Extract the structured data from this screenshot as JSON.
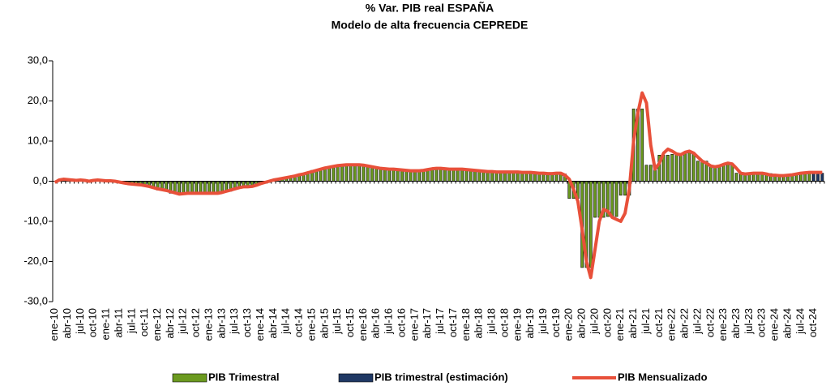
{
  "chart_data": {
    "type": "combo",
    "title": "% Var. PIB real ESPAÑA",
    "subtitle": "Modelo de alta frecuencia CEPREDE",
    "ylim": [
      -30,
      30
    ],
    "yticks": [
      {
        "value": -30,
        "label": "-30,0"
      },
      {
        "value": -20,
        "label": "-20,0"
      },
      {
        "value": -10,
        "label": "-10,0"
      },
      {
        "value": 0,
        "label": "0,0"
      },
      {
        "value": 10,
        "label": "10,0"
      },
      {
        "value": 20,
        "label": "20,0"
      },
      {
        "value": 30,
        "label": "30,0"
      }
    ],
    "categories": [
      "ene-10",
      null,
      null,
      "abr-10",
      null,
      null,
      "jul-10",
      null,
      null,
      "oct-10",
      null,
      null,
      "ene-11",
      null,
      null,
      "abr-11",
      null,
      null,
      "jul-11",
      null,
      null,
      "oct-11",
      null,
      null,
      "ene-12",
      null,
      null,
      "abr-12",
      null,
      null,
      "jul-12",
      null,
      null,
      "oct-12",
      null,
      null,
      "ene-13",
      null,
      null,
      "abr-13",
      null,
      null,
      "jul-13",
      null,
      null,
      "oct-13",
      null,
      null,
      "ene-14",
      null,
      null,
      "abr-14",
      null,
      null,
      "jul-14",
      null,
      null,
      "oct-14",
      null,
      null,
      "ene-15",
      null,
      null,
      "abr-15",
      null,
      null,
      "jul-15",
      null,
      null,
      "oct-15",
      null,
      null,
      "ene-16",
      null,
      null,
      "abr-16",
      null,
      null,
      "jul-16",
      null,
      null,
      "oct-16",
      null,
      null,
      "ene-17",
      null,
      null,
      "abr-17",
      null,
      null,
      "jul-17",
      null,
      null,
      "oct-17",
      null,
      null,
      "ene-18",
      null,
      null,
      "abr-18",
      null,
      null,
      "jul-18",
      null,
      null,
      "oct-18",
      null,
      null,
      "ene-19",
      null,
      null,
      "abr-19",
      null,
      null,
      "jul-19",
      null,
      null,
      "oct-19",
      null,
      null,
      "ene-20",
      null,
      null,
      "abr-20",
      null,
      null,
      "jul-20",
      null,
      null,
      "oct-20",
      null,
      null,
      "ene-21",
      null,
      null,
      "abr-21",
      null,
      null,
      "jul-21",
      null,
      null,
      "oct-21",
      null,
      null,
      "ene-22",
      null,
      null,
      "abr-22",
      null,
      null,
      "jul-22",
      null,
      null,
      "oct-22",
      null,
      null,
      "ene-23",
      null,
      null,
      "abr-23",
      null,
      null,
      "jul-23",
      null,
      null,
      "oct-23",
      null,
      null,
      "ene-24",
      null,
      null,
      "abr-24",
      null,
      null,
      "jul-24",
      null,
      null,
      "oct-24",
      null,
      null
    ],
    "series": [
      {
        "name": "PIB Trimestral",
        "type": "bar",
        "color": "#6b9a1f",
        "values": [
          0.0,
          0.0,
          0.0,
          0.3,
          0.3,
          0.3,
          0.3,
          0.3,
          0.3,
          0.2,
          0.2,
          0.2,
          0.1,
          0.1,
          0.1,
          -0.3,
          -0.3,
          -0.3,
          -0.8,
          -0.8,
          -0.8,
          -1.3,
          -1.3,
          -1.3,
          -2.2,
          -2.2,
          -2.2,
          -3.0,
          -3.0,
          -3.0,
          -3.0,
          -3.0,
          -3.0,
          -3.0,
          -3.0,
          -3.0,
          -3.0,
          -3.0,
          -3.0,
          -2.5,
          -2.5,
          -2.5,
          -1.6,
          -1.6,
          -1.6,
          -1.2,
          -1.2,
          -1.2,
          -0.3,
          -0.3,
          -0.3,
          0.5,
          0.5,
          0.5,
          1.1,
          1.1,
          1.1,
          1.8,
          1.8,
          1.8,
          2.7,
          2.7,
          2.7,
          3.5,
          3.5,
          3.5,
          4.0,
          4.0,
          4.0,
          4.1,
          4.1,
          4.1,
          3.8,
          3.8,
          3.8,
          3.2,
          3.2,
          3.2,
          3.0,
          3.0,
          3.0,
          2.7,
          2.7,
          2.7,
          2.6,
          2.6,
          2.6,
          3.0,
          3.0,
          3.0,
          3.1,
          3.1,
          3.1,
          3.0,
          3.0,
          3.0,
          2.8,
          2.8,
          2.8,
          2.5,
          2.5,
          2.5,
          2.3,
          2.3,
          2.3,
          2.3,
          2.3,
          2.3,
          2.2,
          2.2,
          2.2,
          2.1,
          2.1,
          2.1,
          1.9,
          1.9,
          1.9,
          1.8,
          1.8,
          1.8,
          -4.3,
          -4.3,
          -4.3,
          -21.5,
          -21.5,
          -21.5,
          -9.0,
          -9.0,
          -9.0,
          -8.8,
          -8.8,
          -8.8,
          -3.5,
          -3.5,
          -3.5,
          18.0,
          18.0,
          18.0,
          4.0,
          4.0,
          4.0,
          6.5,
          6.5,
          6.5,
          6.7,
          6.7,
          6.7,
          7.2,
          7.2,
          7.2,
          5.0,
          5.0,
          5.0,
          3.8,
          3.8,
          3.8,
          4.2,
          4.2,
          4.2,
          2.0,
          2.0,
          2.0,
          1.9,
          1.9,
          1.9,
          1.9,
          1.9,
          1.9,
          1.5,
          1.5,
          1.5,
          1.5,
          1.5,
          1.5,
          2.0,
          2.0,
          2.0,
          null,
          null,
          null
        ]
      },
      {
        "name": "PIB trimestral (estimación)",
        "type": "bar",
        "color": "#1f3864",
        "values": [
          null,
          null,
          null,
          null,
          null,
          null,
          null,
          null,
          null,
          null,
          null,
          null,
          null,
          null,
          null,
          null,
          null,
          null,
          null,
          null,
          null,
          null,
          null,
          null,
          null,
          null,
          null,
          null,
          null,
          null,
          null,
          null,
          null,
          null,
          null,
          null,
          null,
          null,
          null,
          null,
          null,
          null,
          null,
          null,
          null,
          null,
          null,
          null,
          null,
          null,
          null,
          null,
          null,
          null,
          null,
          null,
          null,
          null,
          null,
          null,
          null,
          null,
          null,
          null,
          null,
          null,
          null,
          null,
          null,
          null,
          null,
          null,
          null,
          null,
          null,
          null,
          null,
          null,
          null,
          null,
          null,
          null,
          null,
          null,
          null,
          null,
          null,
          null,
          null,
          null,
          null,
          null,
          null,
          null,
          null,
          null,
          null,
          null,
          null,
          null,
          null,
          null,
          null,
          null,
          null,
          null,
          null,
          null,
          null,
          null,
          null,
          null,
          null,
          null,
          null,
          null,
          null,
          null,
          null,
          null,
          null,
          null,
          null,
          null,
          null,
          null,
          null,
          null,
          null,
          null,
          null,
          null,
          null,
          null,
          null,
          null,
          null,
          null,
          null,
          null,
          null,
          null,
          null,
          null,
          null,
          null,
          null,
          null,
          null,
          null,
          null,
          null,
          null,
          null,
          null,
          null,
          null,
          null,
          null,
          null,
          null,
          null,
          null,
          null,
          null,
          null,
          null,
          null,
          null,
          null,
          null,
          null,
          null,
          null,
          null,
          null,
          null,
          2.0,
          2.0,
          2.0
        ]
      },
      {
        "name": "PIB Mensualizado",
        "type": "line",
        "color": "#e8503a",
        "values": [
          -0.3,
          0.3,
          0.5,
          0.4,
          0.3,
          0.2,
          0.3,
          0.2,
          0.0,
          0.2,
          0.3,
          0.2,
          0.1,
          0.1,
          0.0,
          -0.2,
          -0.4,
          -0.6,
          -0.7,
          -0.8,
          -0.9,
          -1.1,
          -1.3,
          -1.6,
          -1.9,
          -2.1,
          -2.3,
          -2.6,
          -2.9,
          -3.2,
          -3.1,
          -3.0,
          -3.0,
          -3.0,
          -3.0,
          -3.0,
          -3.0,
          -3.0,
          -3.0,
          -2.8,
          -2.5,
          -2.2,
          -1.9,
          -1.6,
          -1.4,
          -1.4,
          -1.3,
          -1.0,
          -0.6,
          -0.3,
          0.0,
          0.3,
          0.5,
          0.7,
          0.9,
          1.1,
          1.3,
          1.6,
          1.8,
          2.1,
          2.4,
          2.7,
          3.0,
          3.3,
          3.5,
          3.7,
          3.9,
          4.0,
          4.1,
          4.1,
          4.1,
          4.1,
          4.0,
          3.8,
          3.6,
          3.4,
          3.2,
          3.1,
          3.0,
          3.0,
          2.9,
          2.8,
          2.7,
          2.6,
          2.6,
          2.6,
          2.7,
          2.9,
          3.1,
          3.2,
          3.2,
          3.1,
          3.0,
          3.0,
          3.0,
          3.0,
          2.9,
          2.8,
          2.7,
          2.6,
          2.5,
          2.4,
          2.4,
          2.3,
          2.3,
          2.3,
          2.3,
          2.3,
          2.3,
          2.2,
          2.2,
          2.2,
          2.1,
          2.0,
          2.0,
          1.9,
          1.9,
          2.0,
          2.0,
          1.5,
          0.5,
          -2.0,
          -5.0,
          -12.0,
          -20.0,
          -24.0,
          -17.0,
          -10.0,
          -7.0,
          -7.5,
          -9.0,
          -9.5,
          -10.0,
          -8.0,
          -2.0,
          10.0,
          17.0,
          22.0,
          19.5,
          9.0,
          3.0,
          4.5,
          7.0,
          8.0,
          7.5,
          6.8,
          6.6,
          7.2,
          7.5,
          7.0,
          6.0,
          5.0,
          4.5,
          3.8,
          3.6,
          3.8,
          4.2,
          4.5,
          4.3,
          3.2,
          2.0,
          1.8,
          1.9,
          2.0,
          2.0,
          2.0,
          1.8,
          1.5,
          1.5,
          1.4,
          1.4,
          1.5,
          1.6,
          1.8,
          2.0,
          2.1,
          2.2,
          2.2,
          2.2,
          2.2
        ]
      }
    ]
  }
}
